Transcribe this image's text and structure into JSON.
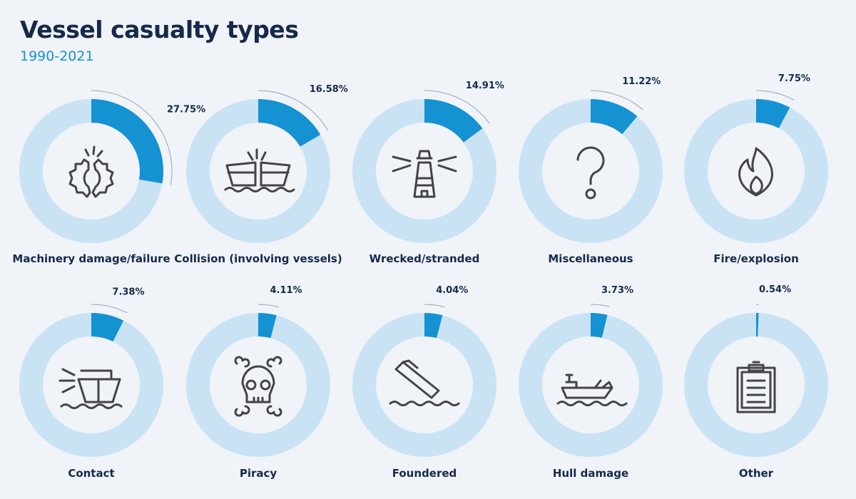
{
  "title": "Vessel casualty types",
  "subtitle": "1990-2021",
  "colors": {
    "value": "#1592d2",
    "track": "#c9e3f5",
    "text": "#16294a",
    "icon": "#444444"
  },
  "chart_data": {
    "type": "donut",
    "unit": "%",
    "items": [
      {
        "label": "Machinery damage/failure",
        "value": 27.75,
        "display": "27.75%",
        "icon": "broken-gears-icon"
      },
      {
        "label": "Collision (involving vessels)",
        "value": 16.58,
        "display": "16.58%",
        "icon": "colliding-ships-icon"
      },
      {
        "label": "Wrecked/stranded",
        "value": 14.91,
        "display": "14.91%",
        "icon": "lighthouse-icon"
      },
      {
        "label": "Miscellaneous",
        "value": 11.22,
        "display": "11.22%",
        "icon": "question-mark-icon"
      },
      {
        "label": "Fire/explosion",
        "value": 7.75,
        "display": "7.75%",
        "icon": "flame-icon"
      },
      {
        "label": "Contact",
        "value": 7.38,
        "display": "7.38%",
        "icon": "ship-contact-icon"
      },
      {
        "label": "Piracy",
        "value": 4.11,
        "display": "4.11%",
        "icon": "skull-crossbones-icon"
      },
      {
        "label": "Foundered",
        "value": 4.04,
        "display": "4.04%",
        "icon": "sinking-ship-icon"
      },
      {
        "label": "Hull damage",
        "value": 3.73,
        "display": "3.73%",
        "icon": "damaged-hull-icon"
      },
      {
        "label": "Other",
        "value": 0.54,
        "display": "0.54%",
        "icon": "clipboard-icon"
      }
    ]
  }
}
